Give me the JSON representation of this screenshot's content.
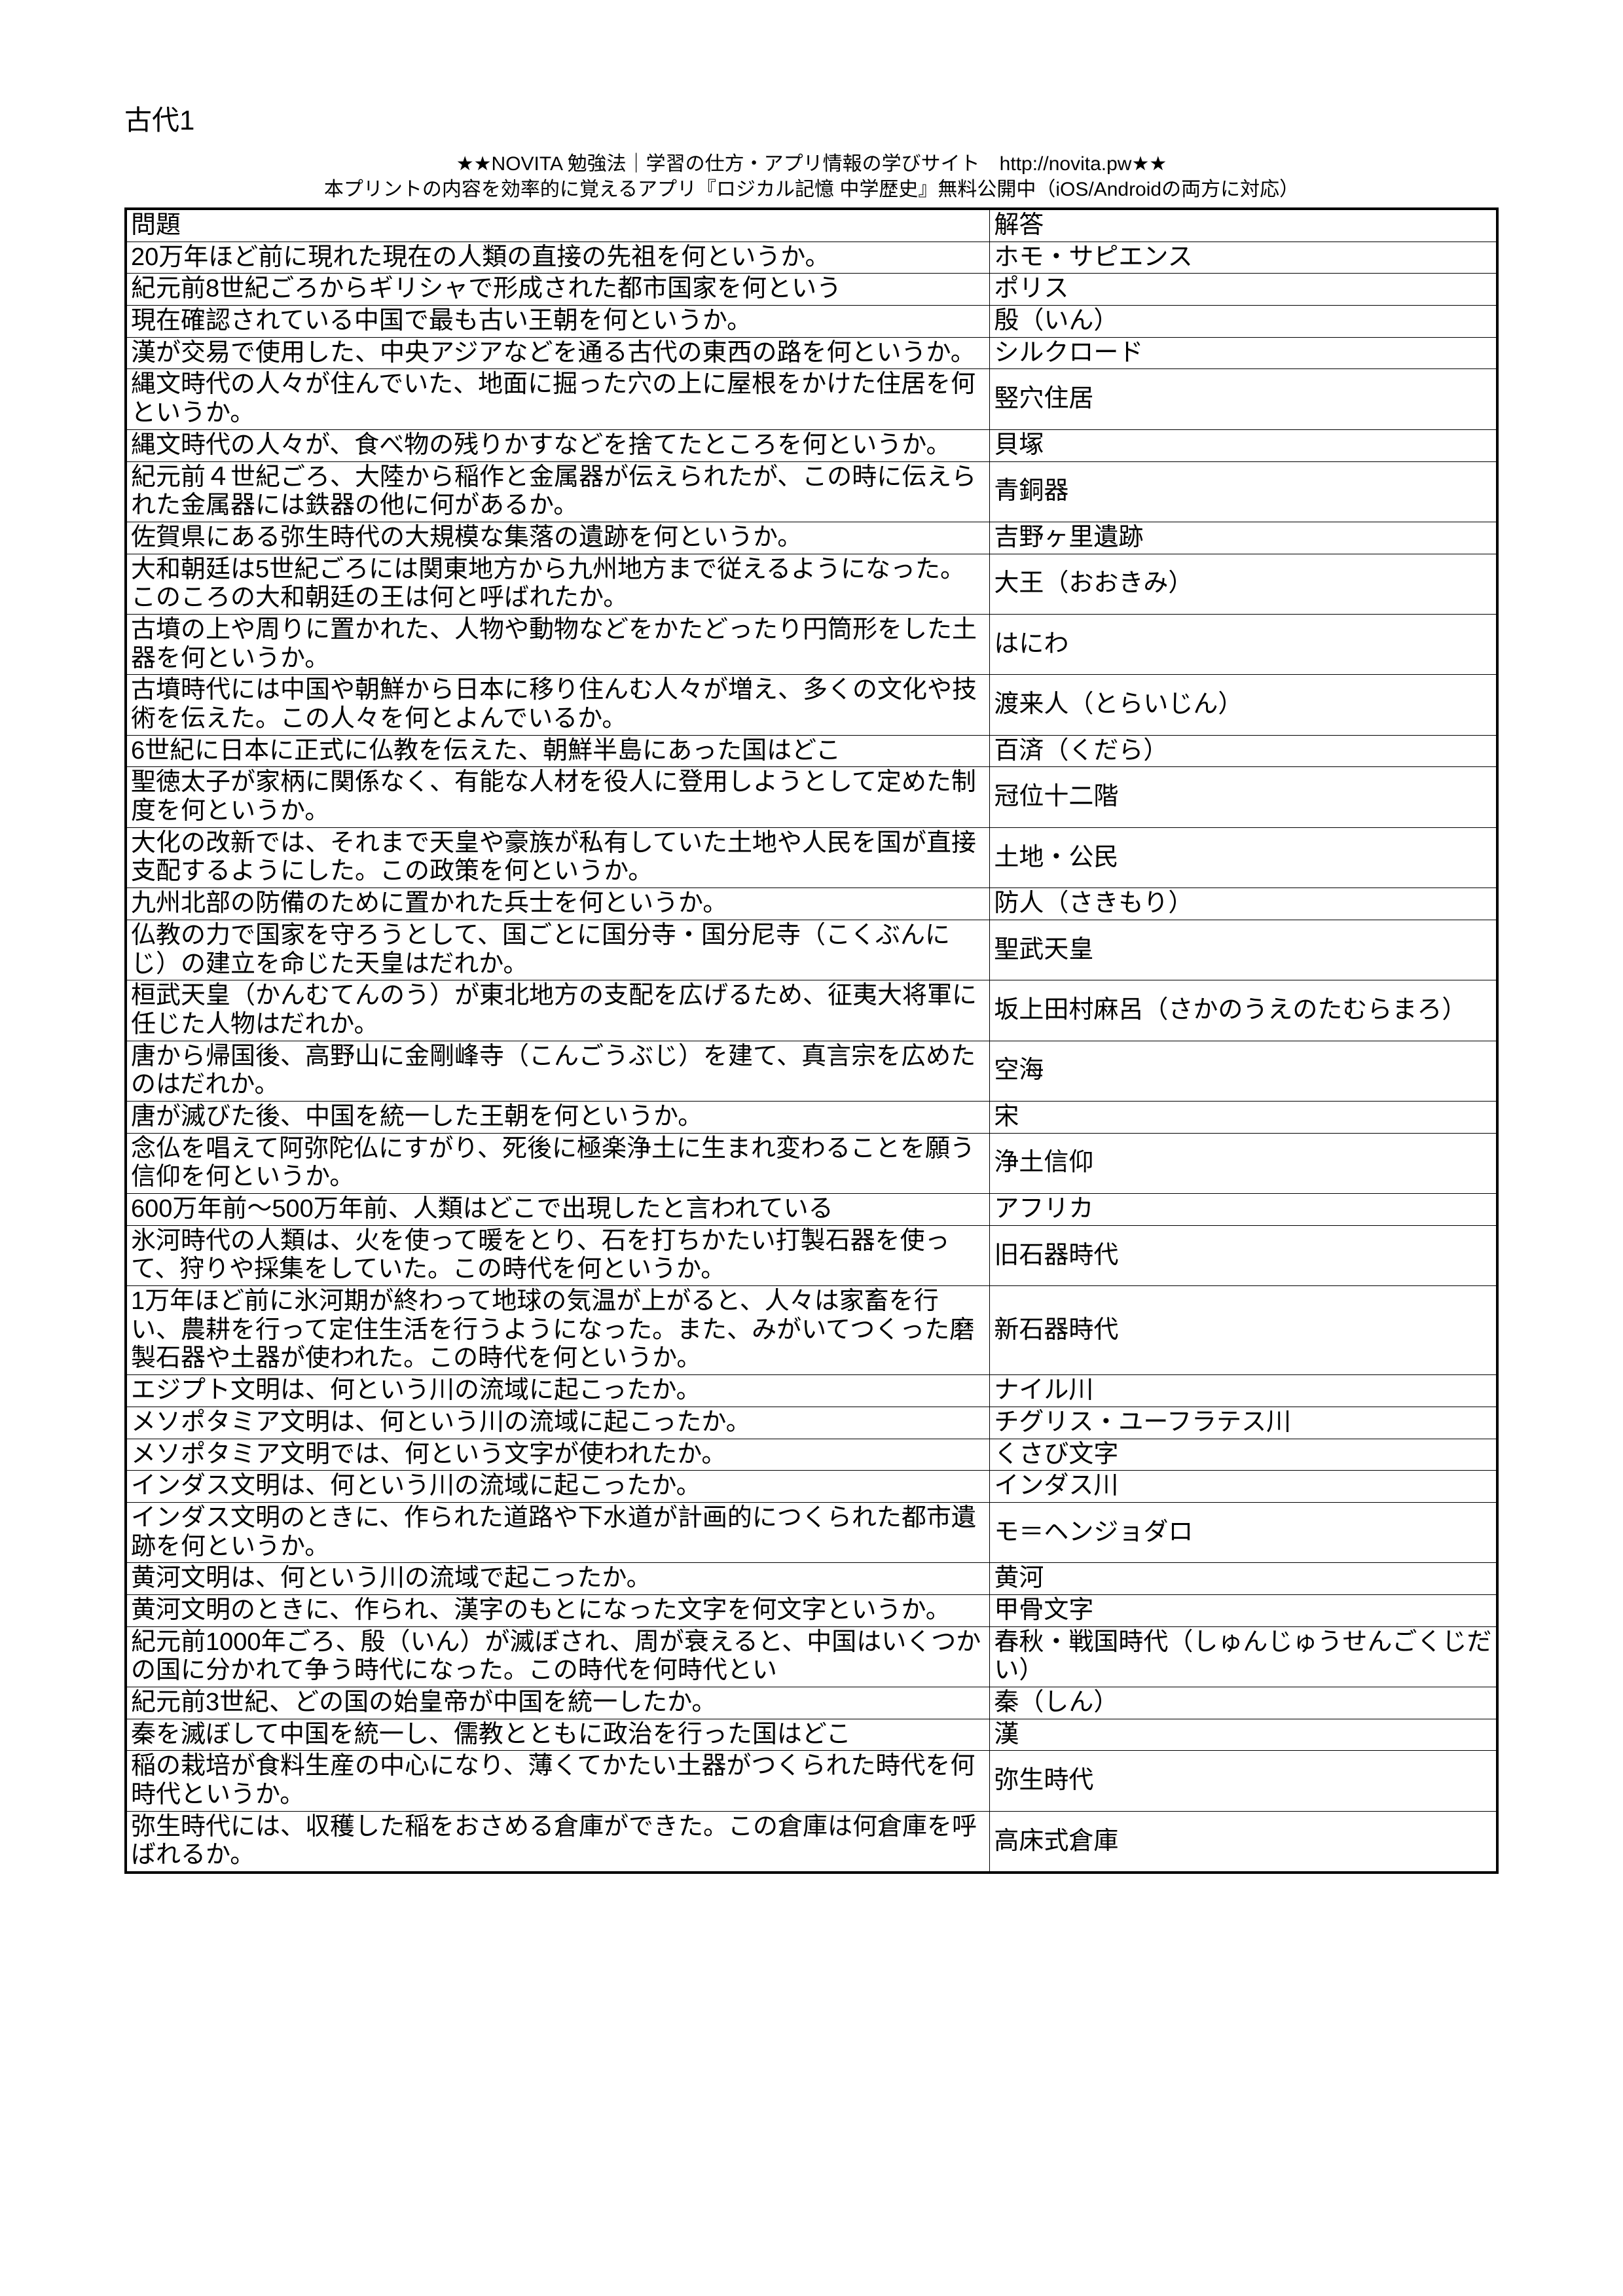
{
  "title": "古代1",
  "header": {
    "line1": "★★NOVITA 勉強法｜学習の仕方・アプリ情報の学びサイト　http://novita.pw★★",
    "line2": "本プリントの内容を効率的に覚えるアプリ『ロジカル記憶 中学歴史』無料公開中（iOS/Androidの両方に対応）"
  },
  "table": {
    "header_question": "問題",
    "header_answer": "解答",
    "rows": [
      {
        "q": "20万年ほど前に現れた現在の人類の直接の先祖を何というか。",
        "a": "ホモ・サピエンス"
      },
      {
        "q": "紀元前8世紀ごろからギリシャで形成された都市国家を何という",
        "a": "ポリス"
      },
      {
        "q": "現在確認されている中国で最も古い王朝を何というか。",
        "a": "殷（いん）"
      },
      {
        "q": "漢が交易で使用した、中央アジアなどを通る古代の東西の路を何というか。",
        "a": "シルクロード"
      },
      {
        "q": "縄文時代の人々が住んでいた、地面に掘った穴の上に屋根をかけた住居を何というか。",
        "a": "竪穴住居"
      },
      {
        "q": "縄文時代の人々が、食べ物の残りかすなどを捨てたところを何というか。",
        "a": "貝塚"
      },
      {
        "q": "紀元前４世紀ごろ、大陸から稲作と金属器が伝えられたが、この時に伝えられた金属器には鉄器の他に何があるか。",
        "a": "青銅器"
      },
      {
        "q": "佐賀県にある弥生時代の大規模な集落の遺跡を何というか。",
        "a": "吉野ヶ里遺跡"
      },
      {
        "q": "大和朝廷は5世紀ごろには関東地方から九州地方まで従えるようになった。このころの大和朝廷の王は何と呼ばれたか。",
        "a": "大王（おおきみ）"
      },
      {
        "q": "古墳の上や周りに置かれた、人物や動物などをかたどったり円筒形をした土器を何というか。",
        "a": "はにわ"
      },
      {
        "q": "古墳時代には中国や朝鮮から日本に移り住んむ人々が増え、多くの文化や技術を伝えた。この人々を何とよんでいるか。",
        "a": "渡来人（とらいじん）"
      },
      {
        "q": "6世紀に日本に正式に仏教を伝えた、朝鮮半島にあった国はどこ",
        "a": "百済（くだら）"
      },
      {
        "q": "聖徳太子が家柄に関係なく、有能な人材を役人に登用しようとして定めた制度を何というか。",
        "a": "冠位十二階"
      },
      {
        "q": "大化の改新では、それまで天皇や豪族が私有していた土地や人民を国が直接支配するようにした。この政策を何というか。",
        "a": "土地・公民"
      },
      {
        "q": "九州北部の防備のために置かれた兵士を何というか。",
        "a": "防人（さきもり）"
      },
      {
        "q": "仏教の力で国家を守ろうとして、国ごとに国分寺・国分尼寺（こくぶんにじ）の建立を命じた天皇はだれか。",
        "a": "聖武天皇"
      },
      {
        "q": "桓武天皇（かんむてんのう）が東北地方の支配を広げるため、征夷大将軍に任じた人物はだれか。",
        "a": "坂上田村麻呂（さかのうえのたむらまろ）"
      },
      {
        "q": "唐から帰国後、高野山に金剛峰寺（こんごうぶじ）を建て、真言宗を広めたのはだれか。",
        "a": "空海"
      },
      {
        "q": "唐が滅びた後、中国を統一した王朝を何というか。",
        "a": "宋"
      },
      {
        "q": "念仏を唱えて阿弥陀仏にすがり、死後に極楽浄土に生まれ変わることを願う信仰を何というか。",
        "a": "浄土信仰"
      },
      {
        "q": "600万年前～500万年前、人類はどこで出現したと言われている",
        "a": "アフリカ"
      },
      {
        "q": "氷河時代の人類は、火を使って暖をとり、石を打ちかたい打製石器を使って、狩りや採集をしていた。この時代を何というか。",
        "a": "旧石器時代"
      },
      {
        "q": "1万年ほど前に氷河期が終わって地球の気温が上がると、人々は家畜を行い、農耕を行って定住生活を行うようになった。また、みがいてつくった磨製石器や土器が使われた。この時代を何というか。",
        "a": "新石器時代"
      },
      {
        "q": "エジプト文明は、何という川の流域に起こったか。",
        "a": "ナイル川"
      },
      {
        "q": "メソポタミア文明は、何という川の流域に起こったか。",
        "a": "チグリス・ユーフラテス川"
      },
      {
        "q": "メソポタミア文明では、何という文字が使われたか。",
        "a": "くさび文字"
      },
      {
        "q": "インダス文明は、何という川の流域に起こったか。",
        "a": "インダス川"
      },
      {
        "q": "インダス文明のときに、作られた道路や下水道が計画的につくられた都市遺跡を何というか。",
        "a": "モ＝ヘンジョダロ"
      },
      {
        "q": "黄河文明は、何という川の流域で起こったか。",
        "a": "黄河"
      },
      {
        "q": "黄河文明のときに、作られ、漢字のもとになった文字を何文字というか。",
        "a": "甲骨文字"
      },
      {
        "q": "紀元前1000年ごろ、殷（いん）が滅ぼされ、周が衰えると、中国はいくつかの国に分かれて争う時代になった。この時代を何時代とい",
        "a": "春秋・戦国時代（しゅんじゅうせんごくじだい）"
      },
      {
        "q": "紀元前3世紀、どの国の始皇帝が中国を統一したか。",
        "a": "秦（しん）"
      },
      {
        "q": "秦を滅ぼして中国を統一し、儒教とともに政治を行った国はどこ",
        "a": "漢"
      },
      {
        "q": "稲の栽培が食料生産の中心になり、薄くてかたい土器がつくられた時代を何時代というか。",
        "a": "弥生時代"
      },
      {
        "q": "弥生時代には、収穫した稲をおさめる倉庫ができた。この倉庫は何倉庫を呼ばれるか。",
        "a": "高床式倉庫"
      }
    ]
  },
  "style": {
    "background_color": "#ffffff",
    "text_color": "#000000",
    "border_color": "#000000",
    "outer_border_width": 4,
    "inner_border_width": 1,
    "title_fontsize": 42,
    "header_fontsize": 30,
    "cell_fontsize": 38,
    "col_q_width_pct": 63,
    "col_a_width_pct": 37
  }
}
